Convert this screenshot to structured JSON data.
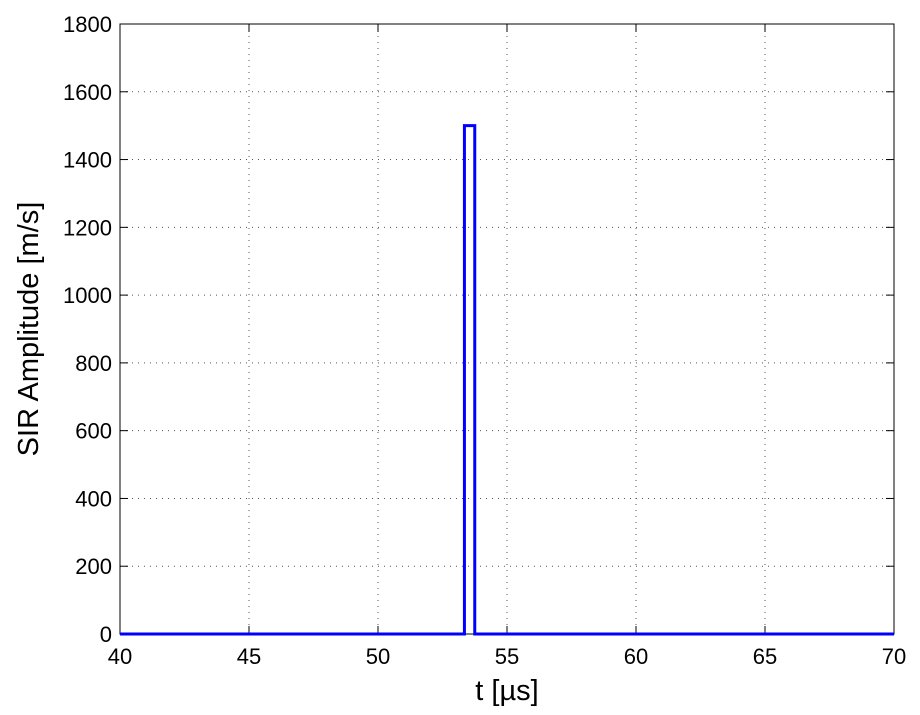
{
  "chart_data": {
    "type": "line",
    "title": "",
    "xlabel": "t [µs]",
    "ylabel": "SIR Amplitude [m/s]",
    "xlim": [
      40,
      70
    ],
    "ylim": [
      0,
      1800
    ],
    "xticks": [
      40,
      45,
      50,
      55,
      60,
      65,
      70
    ],
    "yticks": [
      0,
      200,
      400,
      600,
      800,
      1000,
      1200,
      1400,
      1600,
      1800
    ],
    "grid": true,
    "series": [
      {
        "color": "#0000ff",
        "x": [
          40,
          53.35,
          53.35,
          53.75,
          53.75,
          70
        ],
        "y": [
          0,
          0,
          1500,
          1500,
          0,
          0
        ]
      }
    ]
  }
}
